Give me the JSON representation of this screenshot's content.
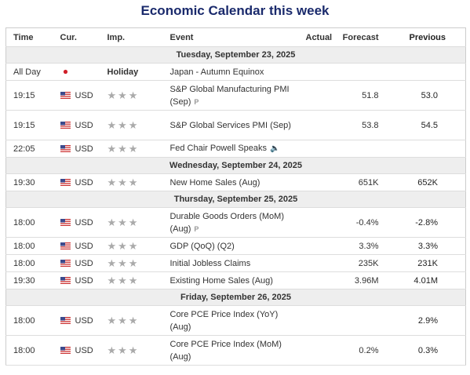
{
  "title": "Economic Calendar this week",
  "headers": [
    "Time",
    "Cur.",
    "Imp.",
    "Event",
    "Actual",
    "Forecast",
    "Previous"
  ],
  "groups": [
    {
      "date": "Tuesday, September 23, 2025",
      "rows": [
        {
          "time": "All Day",
          "flag": "jp",
          "importance": "Holiday",
          "event": "Japan - Autumn Equinox"
        },
        {
          "time": "19:15",
          "flag": "us",
          "currency": "USD",
          "event": "S&P Global Manufacturing PMI (Sep)",
          "marker": "P",
          "forecast": "51.8",
          "previous": "53.0"
        },
        {
          "time": "19:15",
          "flag": "us",
          "currency": "USD",
          "event": "S&P Global Services PMI (Sep)",
          "forecast": "53.8",
          "previous": "54.5"
        },
        {
          "time": "22:05",
          "flag": "us",
          "currency": "USD",
          "event": "Fed Chair Powell Speaks",
          "speech": true
        }
      ]
    },
    {
      "date": "Wednesday, September 24, 2025",
      "rows": [
        {
          "time": "19:30",
          "flag": "us",
          "currency": "USD",
          "event": "New Home Sales (Aug)",
          "forecast": "651K",
          "previous": "652K"
        }
      ]
    },
    {
      "date": "Thursday, September 25, 2025",
      "rows": [
        {
          "time": "18:00",
          "flag": "us",
          "currency": "USD",
          "event": "Durable Goods Orders (MoM) (Aug)",
          "marker": "P",
          "forecast": "-0.4%",
          "previous": "-2.8%"
        },
        {
          "time": "18:00",
          "flag": "us",
          "currency": "USD",
          "event": "GDP (QoQ) (Q2)",
          "forecast": "3.3%",
          "previous": "3.3%"
        },
        {
          "time": "18:00",
          "flag": "us",
          "currency": "USD",
          "event": "Initial Jobless Claims",
          "forecast": "235K",
          "previous": "231K"
        },
        {
          "time": "19:30",
          "flag": "us",
          "currency": "USD",
          "event": "Existing Home Sales (Aug)",
          "forecast": "3.96M",
          "previous": "4.01M"
        }
      ]
    },
    {
      "date": "Friday, September 26, 2025",
      "rows": [
        {
          "time": "18:00",
          "flag": "us",
          "currency": "USD",
          "event": "Core PCE Price Index (YoY) (Aug)",
          "previous": "2.9%"
        },
        {
          "time": "18:00",
          "flag": "us",
          "currency": "USD",
          "event": "Core PCE Price Index (MoM) (Aug)",
          "forecast": "0.2%",
          "previous": "0.3%"
        }
      ]
    }
  ]
}
